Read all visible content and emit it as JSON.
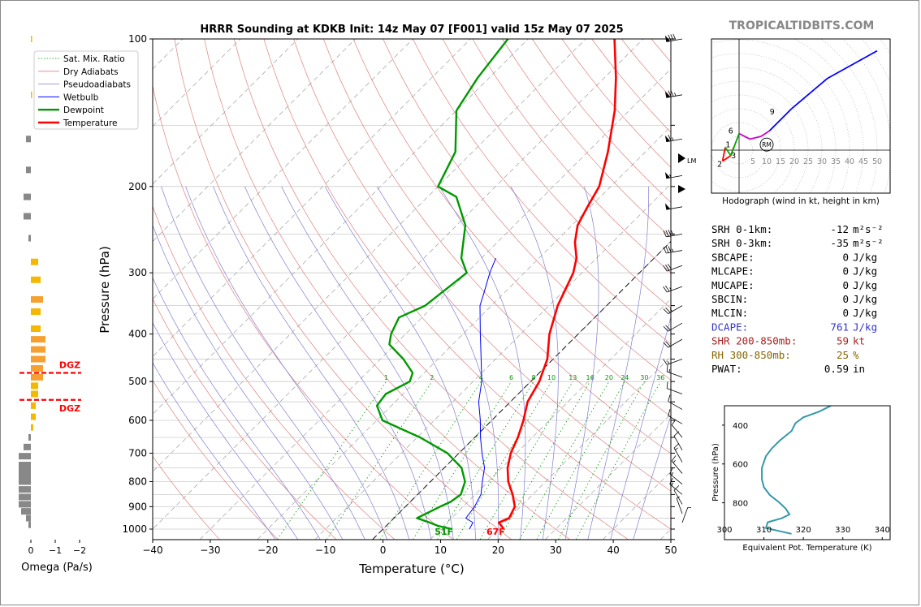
{
  "title": "HRRR Sounding at KDKB Init: 14z May 07 [F001] valid 15z May 07 2025",
  "brand": "TROPICALTIDBITS.COM",
  "colors": {
    "temperature": "#ff0000",
    "dewpoint": "#009900",
    "wetbulb": "#0000ff",
    "dry_adiabat": "#e08080",
    "moist_adiabat": "#8080d0",
    "mixratio": "#009900",
    "theta_e": "#3399aa",
    "dgz": "#ff0000",
    "omega_up": "#f5b800",
    "omega_down": "#888888",
    "dcape": "#3333cc",
    "shr": "#aa2222",
    "rh": "#886600"
  },
  "chart_data": [
    {
      "name": "skewt",
      "type": "line",
      "xlabel": "Temperature (°C)",
      "ylabel": "Pressure (hPa)",
      "xlim": [
        -40,
        50
      ],
      "ylim": [
        1050,
        100
      ],
      "y_scale": "log",
      "xticks": [
        -40,
        -30,
        -20,
        -10,
        0,
        10,
        20,
        30,
        40,
        50
      ],
      "yticks": [
        100,
        200,
        300,
        400,
        500,
        600,
        700,
        800,
        900,
        1000
      ],
      "legend": {
        "position": "top-left",
        "entries": [
          "Sat. Mix. Ratio",
          "Dry Adiabats",
          "Pseudoadiabats",
          "Wetbulb",
          "Dewpoint",
          "Temperature"
        ]
      },
      "series": [
        {
          "name": "Temperature",
          "p": [
            1000,
            985,
            970,
            950,
            900,
            850,
            800,
            750,
            700,
            650,
            600,
            550,
            500,
            450,
            400,
            350,
            300,
            280,
            260,
            240,
            220,
            200,
            170,
            140,
            120,
            100
          ],
          "t": [
            21,
            20,
            19,
            20,
            19,
            16.5,
            13.5,
            11,
            9,
            7.5,
            5.5,
            3,
            1.5,
            -1,
            -5,
            -8.5,
            -11.5,
            -13.5,
            -16.5,
            -19,
            -20.5,
            -22,
            -26.5,
            -32.5,
            -38,
            -45
          ]
        },
        {
          "name": "Dewpoint",
          "p": [
            1000,
            985,
            970,
            950,
            900,
            880,
            850,
            800,
            750,
            700,
            650,
            600,
            560,
            530,
            500,
            480,
            450,
            420,
            400,
            370,
            350,
            300,
            280,
            240,
            210,
            200,
            170,
            140,
            120,
            100
          ],
          "t": [
            12,
            9,
            7,
            4,
            6,
            7,
            7.5,
            6,
            3,
            -2,
            -9.5,
            -19,
            -22.5,
            -23,
            -21,
            -22,
            -26,
            -31,
            -32.5,
            -34,
            -31.5,
            -30,
            -33.5,
            -38.5,
            -45,
            -50,
            -53,
            -60,
            -62,
            -63.5
          ]
        },
        {
          "name": "Wetbulb",
          "p": [
            1000,
            970,
            950,
            900,
            850,
            800,
            750,
            700,
            650,
            600,
            550,
            500,
            450,
            400,
            350,
            330,
            300,
            280
          ],
          "t": [
            15,
            14.5,
            12.5,
            12,
            11,
            9,
            7,
            4,
            1,
            -2,
            -5.5,
            -8.5,
            -12.5,
            -17,
            -22,
            -23.5,
            -26,
            -27.5
          ]
        }
      ],
      "mixing_ratio_labels": [
        "1",
        "2",
        "4",
        "6",
        "8",
        "10",
        "13",
        "16",
        "20",
        "24",
        "30",
        "36"
      ],
      "surface_labels": {
        "dewpoint": "51F",
        "temperature": "67F"
      }
    },
    {
      "name": "omega",
      "type": "bar",
      "xlabel": "Omega (Pa/s)",
      "xticks": [
        "0",
        "−1",
        "−2"
      ],
      "dgz_label": "DGZ",
      "dgz_bounds_hpa": [
        480,
        545
      ],
      "p": [
        100,
        130,
        160,
        185,
        210,
        230,
        255,
        285,
        310,
        340,
        360,
        390,
        410,
        430,
        450,
        470,
        490,
        510,
        530,
        560,
        590,
        620,
        650,
        680,
        710,
        740,
        760,
        780,
        800,
        830,
        860,
        890,
        920,
        950,
        980
      ],
      "omega": [
        -0.05,
        -0.05,
        0.2,
        0.2,
        0.3,
        0.3,
        0.1,
        -0.3,
        -0.4,
        -0.5,
        -0.4,
        -0.4,
        -0.6,
        -0.6,
        -0.6,
        -0.5,
        -0.5,
        -0.3,
        -0.3,
        -0.2,
        -0.2,
        -0.1,
        0.1,
        0.3,
        0.5,
        0.5,
        0.5,
        0.5,
        0.5,
        0.5,
        0.5,
        0.5,
        0.4,
        0.2,
        0.1
      ]
    },
    {
      "name": "hodograph",
      "type": "line",
      "caption": "Hodograph (wind in kt, height in km)",
      "xticks": [
        "5",
        "10",
        "15",
        "20",
        "25",
        "30",
        "35",
        "40",
        "45",
        "50"
      ],
      "height_labels": [
        "1",
        "2",
        "3",
        "6",
        "9"
      ],
      "storm_motion": [
        "RM",
        "LM"
      ],
      "u": [
        -2,
        -3,
        -6,
        -5,
        -3,
        0,
        4,
        8,
        11,
        16,
        19,
        32,
        50
      ],
      "v": [
        1,
        -2,
        -4,
        1,
        -2,
        6,
        4,
        5,
        7,
        12,
        15,
        26,
        36
      ]
    },
    {
      "name": "theta_e",
      "type": "line",
      "xlabel": "Equivalent Pot. Temperature (K)",
      "ylabel": "Pressure (hPa)",
      "xlim": [
        300,
        342
      ],
      "ylim": [
        990,
        300
      ],
      "xticks": [
        300,
        310,
        320,
        330,
        340
      ],
      "yticks": [
        400,
        600,
        800
      ],
      "p": [
        300,
        330,
        360,
        390,
        430,
        480,
        520,
        560,
        620,
        680,
        720,
        760,
        800,
        830,
        860,
        880,
        900,
        930,
        960
      ],
      "theta": [
        327,
        324,
        320,
        318,
        317,
        314,
        312,
        310.5,
        309.5,
        309.5,
        310,
        311.5,
        314,
        315.5,
        316.5,
        314.5,
        311,
        310.5,
        317
      ]
    }
  ],
  "indices": [
    {
      "label": "SRH 0-1km:",
      "value": "-12",
      "unit": "m²s⁻²",
      "style": "normal"
    },
    {
      "label": "SRH 0-3km:",
      "value": "-35",
      "unit": "m²s⁻²",
      "style": "normal"
    },
    {
      "label": "SBCAPE:",
      "value": "0",
      "unit": "J/kg",
      "style": "normal"
    },
    {
      "label": "MLCAPE:",
      "value": "0",
      "unit": "J/kg",
      "style": "normal"
    },
    {
      "label": "MUCAPE:",
      "value": "0",
      "unit": "J/kg",
      "style": "normal"
    },
    {
      "label": "SBCIN:",
      "value": "0",
      "unit": "J/kg",
      "style": "normal"
    },
    {
      "label": "MLCIN:",
      "value": "0",
      "unit": "J/kg",
      "style": "normal"
    },
    {
      "label": "DCAPE:",
      "value": "761",
      "unit": "J/kg",
      "style": "dcape"
    },
    {
      "label": "SHR 200-850mb:",
      "value": "59",
      "unit": "kt",
      "style": "shr"
    },
    {
      "label": "RH 300-850mb:",
      "value": "25",
      "unit": "%",
      "style": "rh"
    },
    {
      "label": "PWAT:",
      "value": "0.59",
      "unit": "in",
      "style": "normal"
    }
  ],
  "wind_barbs": [
    {
      "p": 100,
      "dir": 260,
      "spd": 80
    },
    {
      "p": 130,
      "dir": 260,
      "spd": 75
    },
    {
      "p": 160,
      "dir": 260,
      "spd": 65
    },
    {
      "p": 190,
      "dir": 260,
      "spd": 55
    },
    {
      "p": 220,
      "dir": 260,
      "spd": 50
    },
    {
      "p": 250,
      "dir": 260,
      "spd": 40
    },
    {
      "p": 270,
      "dir": 260,
      "spd": 35
    },
    {
      "p": 290,
      "dir": 250,
      "spd": 30
    },
    {
      "p": 320,
      "dir": 250,
      "spd": 25
    },
    {
      "p": 350,
      "dir": 240,
      "spd": 25
    },
    {
      "p": 380,
      "dir": 240,
      "spd": 20
    },
    {
      "p": 410,
      "dir": 240,
      "spd": 20
    },
    {
      "p": 450,
      "dir": 250,
      "spd": 15
    },
    {
      "p": 490,
      "dir": 290,
      "spd": 15
    },
    {
      "p": 530,
      "dir": 290,
      "spd": 10
    },
    {
      "p": 570,
      "dir": 300,
      "spd": 10
    },
    {
      "p": 610,
      "dir": 300,
      "spd": 10
    },
    {
      "p": 650,
      "dir": 320,
      "spd": 10
    },
    {
      "p": 690,
      "dir": 330,
      "spd": 10
    },
    {
      "p": 730,
      "dir": 330,
      "spd": 15
    },
    {
      "p": 770,
      "dir": 320,
      "spd": 15
    },
    {
      "p": 810,
      "dir": 310,
      "spd": 15
    },
    {
      "p": 850,
      "dir": 310,
      "spd": 15
    },
    {
      "p": 890,
      "dir": 330,
      "spd": 10
    },
    {
      "p": 930,
      "dir": 340,
      "spd": 5
    },
    {
      "p": 970,
      "dir": 20,
      "spd": 5
    }
  ]
}
